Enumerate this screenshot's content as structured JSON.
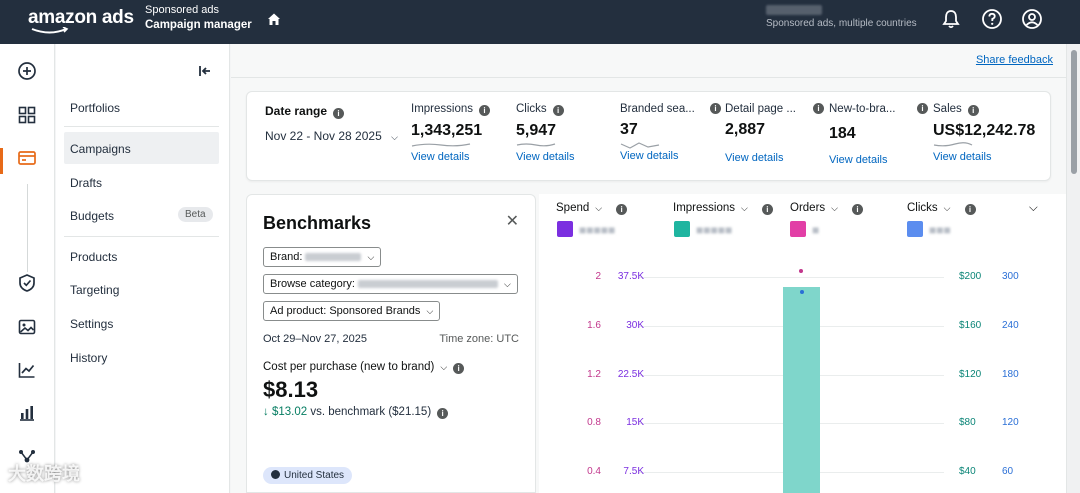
{
  "topbar": {
    "logo": "amazon ads",
    "product_line1": "Sponsored ads",
    "product_line2": "Campaign manager",
    "account_subtitle": "Sponsored ads, multiple countries",
    "icons": [
      "home-icon",
      "bell-icon",
      "help-icon",
      "account-icon"
    ]
  },
  "rail": {
    "icons": [
      "create-icon",
      "dashboard-icon",
      "campaign-manager-icon",
      "brand-protection-icon",
      "media-icon",
      "reports-icon",
      "analytics-icon",
      "integrations-icon"
    ]
  },
  "nav": {
    "items": [
      "Portfolios",
      "Campaigns",
      "Drafts",
      "Budgets",
      "Products",
      "Targeting",
      "Settings",
      "History"
    ],
    "budgets_badge": "Beta",
    "selected": "Campaigns"
  },
  "main": {
    "share_feedback": "Share feedback"
  },
  "kpi": {
    "date_label": "Date range",
    "date_value": "Nov 22 - Nov 28 2025",
    "view_details": "View details",
    "metrics": [
      {
        "label": "Impressions",
        "value": "1,343,251"
      },
      {
        "label": "Clicks",
        "value": "5,947"
      },
      {
        "label": "Branded sea...",
        "value": "37"
      },
      {
        "label": "Detail page ...",
        "value": "2,887"
      },
      {
        "label": "New-to-bra...",
        "value": "184"
      },
      {
        "label": "Sales",
        "value": "US$12,242.78"
      }
    ]
  },
  "benchmarks": {
    "title": "Benchmarks",
    "brand_chip": "Brand:",
    "category_chip": "Browse category:",
    "product_chip": "Ad product: Sponsored Brands",
    "date": "Oct 29–Nov 27, 2025",
    "timezone": "Time zone: UTC",
    "metric_label": "Cost per purchase (new to brand)",
    "value": "$8.13",
    "delta": "$13.02",
    "delta_suffix": "vs. benchmark ($21.15)",
    "country": "United States"
  },
  "chart_selectors": [
    {
      "label": "Spend",
      "color": "#7b2fe0"
    },
    {
      "label": "Impressions",
      "color": "#1fb5a0"
    },
    {
      "label": "Orders",
      "color": "#e23fa6"
    },
    {
      "label": "Clicks",
      "color": "#5b8def"
    }
  ],
  "chart_data": {
    "type": "bar",
    "axes": {
      "orders": [
        "2",
        "1.6",
        "1.2",
        "0.8",
        "0.4"
      ],
      "impressions": [
        "37.5K",
        "30K",
        "22.5K",
        "15K",
        "7.5K"
      ],
      "spend": [
        "$200",
        "$160",
        "$120",
        "$80",
        "$40"
      ],
      "clicks": [
        "300",
        "240",
        "180",
        "120",
        "60"
      ]
    },
    "colors": {
      "orders": "#c2378c",
      "impressions": "#7b2fe0",
      "spend": "#0b8577",
      "clicks": "#2a6fd6",
      "bar": "#7fd6cb"
    }
  },
  "watermark": "大数跨境"
}
